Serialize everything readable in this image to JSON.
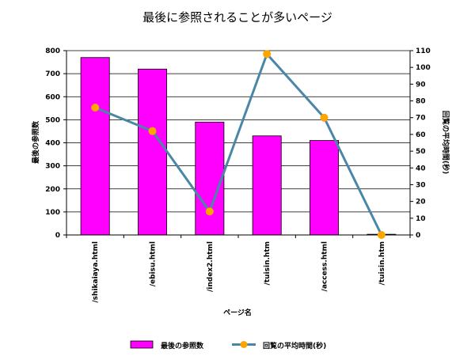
{
  "chart_data": {
    "type": "bar",
    "title": "最後に参照されることが多いページ",
    "xlabel": "ページ名",
    "categories": [
      "/shikaiaya.html",
      "/ebisu.html",
      "/index2.html",
      "/tuisin.htm",
      "/access.html",
      "/tuisin.htm"
    ],
    "series": [
      {
        "name": "最後の参照数",
        "type": "bar",
        "axis": "left",
        "color": "#ff00ff",
        "values": [
          770,
          720,
          490,
          430,
          410,
          3
        ]
      },
      {
        "name": "回覧の平均時間(秒)",
        "type": "line",
        "axis": "right",
        "color": "#4a86a8",
        "marker_color": "#ffa500",
        "values": [
          76,
          62,
          14,
          108,
          70,
          0
        ]
      }
    ],
    "y_left": {
      "label": "最後の参照数",
      "range": [
        0,
        800
      ],
      "ticks": [
        "0",
        "100",
        "200",
        "300",
        "400",
        "500",
        "600",
        "700",
        "800"
      ]
    },
    "y_right": {
      "label": "回覧の平均時間(秒)",
      "range": [
        0,
        110
      ],
      "ticks": [
        "0",
        "10",
        "20",
        "30",
        "40",
        "50",
        "60",
        "70",
        "80",
        "90",
        "100",
        "110"
      ]
    },
    "grid": true,
    "legend_position": "bottom"
  }
}
